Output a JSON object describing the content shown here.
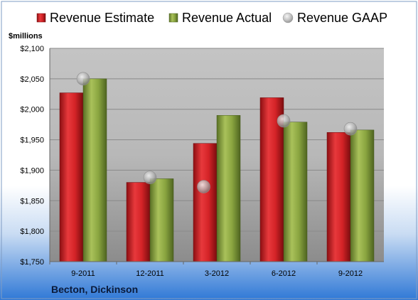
{
  "chart_data": {
    "type": "bar",
    "ylabel": "$millions",
    "company": "Becton, Dickinson",
    "categories": [
      "9-2011",
      "12-2011",
      "3-2012",
      "6-2012",
      "9-2012"
    ],
    "ylim": [
      1750,
      2100
    ],
    "yticks": [
      "$1,750",
      "$1,800",
      "$1,850",
      "$1,900",
      "$1,950",
      "$2,000",
      "$2,050",
      "$2,100"
    ],
    "ytick_values": [
      1750,
      1800,
      1850,
      1900,
      1950,
      2000,
      2050,
      2100
    ],
    "grid": true,
    "legend_position": "top",
    "series": [
      {
        "name": "Revenue Estimate",
        "type": "bar",
        "color": "#cc1f24",
        "values": [
          2027,
          1880,
          1944,
          2019,
          1962
        ]
      },
      {
        "name": "Revenue Actual",
        "type": "bar",
        "color": "#7f9a3a",
        "values": [
          2050,
          1886,
          1990,
          1979,
          1966
        ]
      },
      {
        "name": "Revenue GAAP",
        "type": "marker",
        "color": "#b8b8b8",
        "values": [
          2050,
          1888,
          1873,
          1981,
          1968
        ]
      }
    ]
  }
}
